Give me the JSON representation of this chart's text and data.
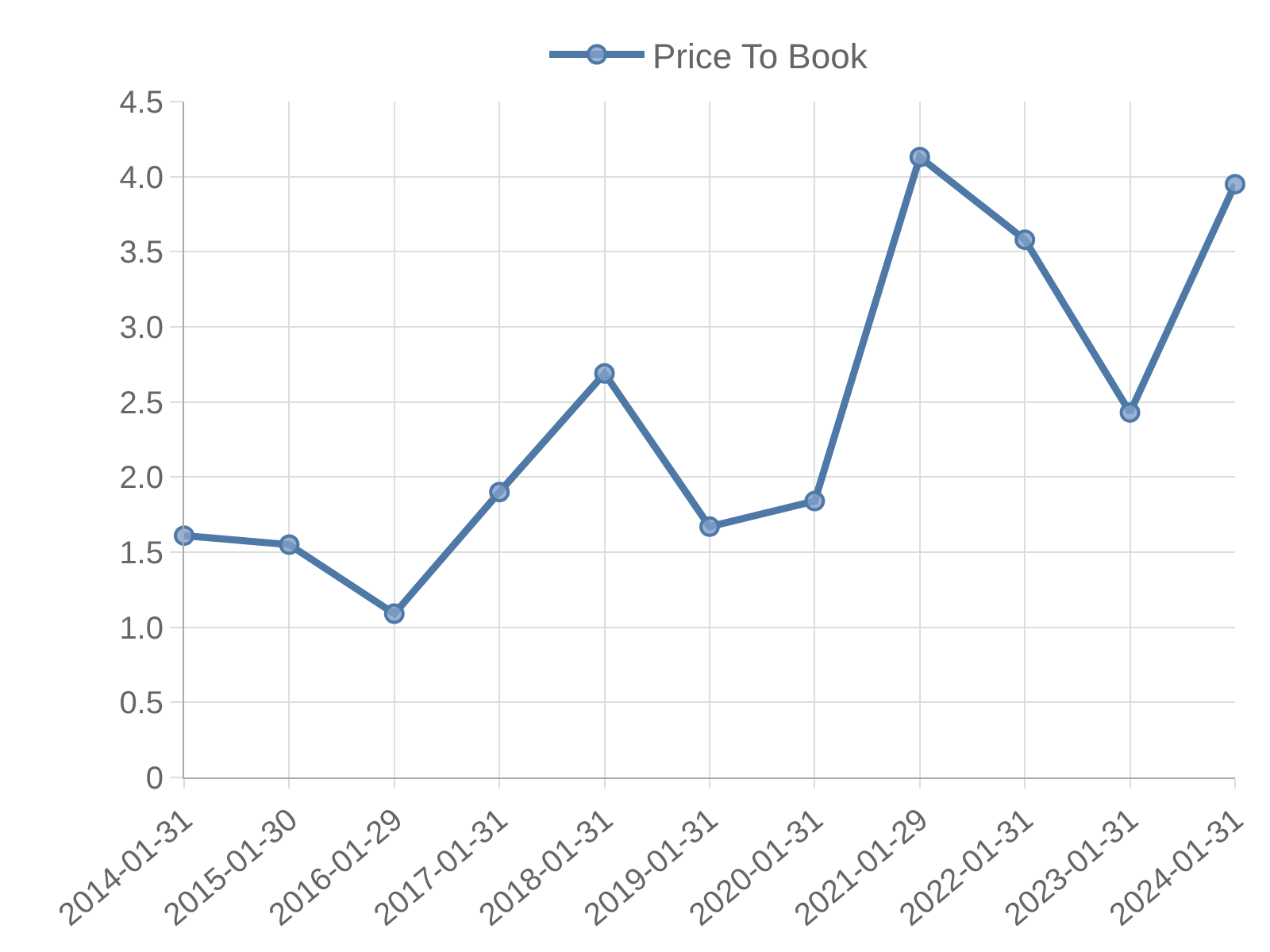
{
  "chart_data": {
    "type": "line",
    "categories": [
      "2014-01-31",
      "2015-01-30",
      "2016-01-29",
      "2017-01-31",
      "2018-01-31",
      "2019-01-31",
      "2020-01-31",
      "2021-01-29",
      "2022-01-31",
      "2023-01-31",
      "2024-01-31"
    ],
    "series": [
      {
        "name": "Price To Book",
        "color": "#4e79a7",
        "values": [
          1.61,
          1.55,
          1.09,
          1.9,
          2.69,
          1.67,
          1.84,
          4.13,
          3.58,
          2.43,
          3.95
        ]
      }
    ],
    "ylim": [
      0,
      4.5
    ],
    "yticks": [
      {
        "value": 0,
        "label": "0"
      },
      {
        "value": 0.5,
        "label": "0.5"
      },
      {
        "value": 1,
        "label": "1.0"
      },
      {
        "value": 1.5,
        "label": "1.5"
      },
      {
        "value": 2,
        "label": "2.0"
      },
      {
        "value": 2.5,
        "label": "2.5"
      },
      {
        "value": 3,
        "label": "3.0"
      },
      {
        "value": 3.5,
        "label": "3.5"
      },
      {
        "value": 4,
        "label": "4.0"
      },
      {
        "value": 4.5,
        "label": "4.5"
      }
    ],
    "grid": true,
    "legend": "top",
    "marker": "circle",
    "line_style": "solid"
  }
}
